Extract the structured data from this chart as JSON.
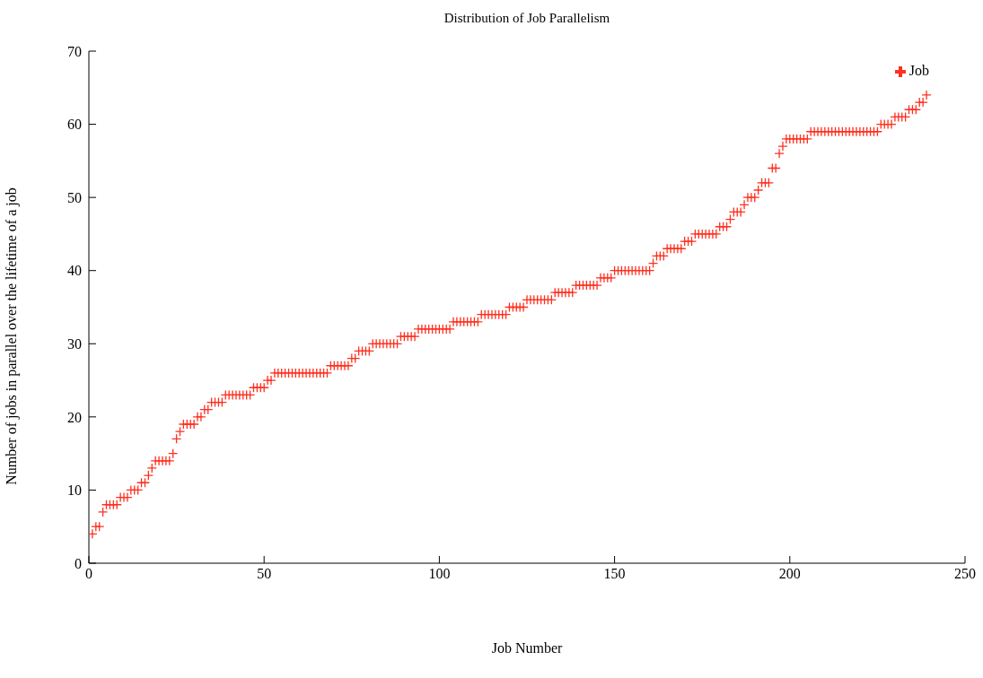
{
  "chart_data": {
    "type": "scatter",
    "title": "Distribution of Job Parallelism",
    "xlabel": "Job Number",
    "ylabel": "Number of jobs in parallel over the lifetime of a job",
    "xlim": [
      0,
      250
    ],
    "xticks": [
      0,
      50,
      100,
      150,
      200,
      250
    ],
    "ylim": [
      0,
      70
    ],
    "yticks": [
      0,
      10,
      20,
      30,
      40,
      50,
      60,
      70
    ],
    "grid": false,
    "legend": "top right",
    "marker": "cross",
    "series": [
      {
        "name": "Job",
        "color": "#ff3020",
        "x": [
          1,
          2,
          3,
          4,
          5,
          6,
          7,
          8,
          9,
          10,
          11,
          12,
          13,
          14,
          15,
          16,
          17,
          18,
          19,
          20,
          21,
          22,
          23,
          24,
          25,
          26,
          27,
          28,
          29,
          30,
          31,
          32,
          33,
          34,
          35,
          36,
          37,
          38,
          39,
          40,
          41,
          42,
          43,
          44,
          45,
          46,
          47,
          48,
          49,
          50,
          51,
          52,
          53,
          54,
          55,
          56,
          57,
          58,
          59,
          60,
          61,
          62,
          63,
          64,
          65,
          66,
          67,
          68,
          69,
          70,
          71,
          72,
          73,
          74,
          75,
          76,
          77,
          78,
          79,
          80,
          81,
          82,
          83,
          84,
          85,
          86,
          87,
          88,
          89,
          90,
          91,
          92,
          93,
          94,
          95,
          96,
          97,
          98,
          99,
          100,
          101,
          102,
          103,
          104,
          105,
          106,
          107,
          108,
          109,
          110,
          111,
          112,
          113,
          114,
          115,
          116,
          117,
          118,
          119,
          120,
          121,
          122,
          123,
          124,
          125,
          126,
          127,
          128,
          129,
          130,
          131,
          132,
          133,
          134,
          135,
          136,
          137,
          138,
          139,
          140,
          141,
          142,
          143,
          144,
          145,
          146,
          147,
          148,
          149,
          150,
          151,
          152,
          153,
          154,
          155,
          156,
          157,
          158,
          159,
          160,
          161,
          162,
          163,
          164,
          165,
          166,
          167,
          168,
          169,
          170,
          171,
          172,
          173,
          174,
          175,
          176,
          177,
          178,
          179,
          180,
          181,
          182,
          183,
          184,
          185,
          186,
          187,
          188,
          189,
          190,
          191,
          192,
          193,
          194,
          195,
          196,
          197,
          198,
          199,
          200,
          201,
          202,
          203,
          204,
          205,
          206,
          207,
          208,
          209,
          210,
          211,
          212,
          213,
          214,
          215,
          216,
          217,
          218,
          219,
          220,
          221,
          222,
          223,
          224,
          225,
          226,
          227,
          228,
          229,
          230,
          231,
          232,
          233,
          234,
          235,
          236,
          237,
          238,
          239
        ],
        "values": [
          4,
          5,
          5,
          7,
          8,
          8,
          8,
          8,
          9,
          9,
          9,
          10,
          10,
          10,
          11,
          11,
          12,
          13,
          14,
          14,
          14,
          14,
          14,
          15,
          17,
          18,
          19,
          19,
          19,
          19,
          20,
          20,
          21,
          21,
          22,
          22,
          22,
          22,
          23,
          23,
          23,
          23,
          23,
          23,
          23,
          23,
          24,
          24,
          24,
          24,
          25,
          25,
          26,
          26,
          26,
          26,
          26,
          26,
          26,
          26,
          26,
          26,
          26,
          26,
          26,
          26,
          26,
          26,
          27,
          27,
          27,
          27,
          27,
          27,
          28,
          28,
          29,
          29,
          29,
          29,
          30,
          30,
          30,
          30,
          30,
          30,
          30,
          30,
          31,
          31,
          31,
          31,
          31,
          32,
          32,
          32,
          32,
          32,
          32,
          32,
          32,
          32,
          32,
          33,
          33,
          33,
          33,
          33,
          33,
          33,
          33,
          34,
          34,
          34,
          34,
          34,
          34,
          34,
          34,
          35,
          35,
          35,
          35,
          35,
          36,
          36,
          36,
          36,
          36,
          36,
          36,
          36,
          37,
          37,
          37,
          37,
          37,
          37,
          38,
          38,
          38,
          38,
          38,
          38,
          38,
          39,
          39,
          39,
          39,
          40,
          40,
          40,
          40,
          40,
          40,
          40,
          40,
          40,
          40,
          40,
          41,
          42,
          42,
          42,
          43,
          43,
          43,
          43,
          43,
          44,
          44,
          44,
          45,
          45,
          45,
          45,
          45,
          45,
          45,
          46,
          46,
          46,
          47,
          48,
          48,
          48,
          49,
          50,
          50,
          50,
          51,
          52,
          52,
          52,
          54,
          54,
          56,
          57,
          58,
          58,
          58,
          58,
          58,
          58,
          58,
          59,
          59,
          59,
          59,
          59,
          59,
          59,
          59,
          59,
          59,
          59,
          59,
          59,
          59,
          59,
          59,
          59,
          59,
          59,
          59,
          60,
          60,
          60,
          60,
          61,
          61,
          61,
          61,
          62,
          62,
          62,
          63,
          63,
          64
        ]
      }
    ]
  }
}
